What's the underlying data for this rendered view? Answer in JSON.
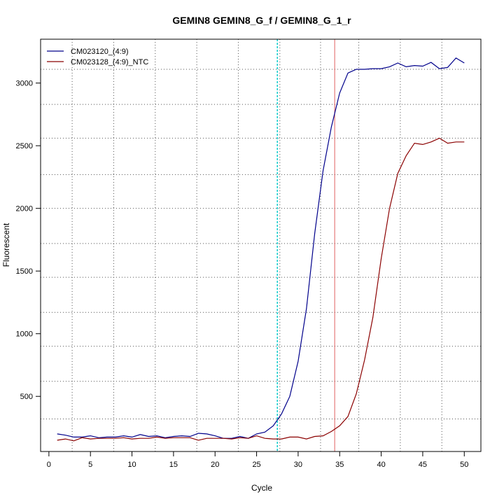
{
  "chart_data": {
    "type": "line",
    "title": "GEMIN8  GEMIN8_G_f / GEMIN8_G_1_r",
    "xlabel": "Cycle",
    "ylabel": "Fluorescent",
    "xlim": [
      -1,
      52
    ],
    "ylim": [
      60,
      3350
    ],
    "xticks": [
      0,
      5,
      10,
      15,
      20,
      25,
      30,
      35,
      40,
      45,
      50
    ],
    "yticks": [
      500,
      1000,
      1500,
      2000,
      2500,
      3000
    ],
    "grid": {
      "style": "dotted",
      "vertical_x": [
        2.8,
        7.8,
        12.8,
        17.8,
        22.8,
        27.8,
        32.7,
        37.3,
        42.3,
        47.3
      ],
      "horizontal_y": [
        320,
        620,
        900,
        1170,
        1450,
        1720,
        2000,
        2270,
        2560,
        2830,
        3110
      ]
    },
    "legend_position": "top-left",
    "threshold_line": {
      "x": 27.5,
      "color": "#00cccc"
    },
    "ct_line": {
      "x": 34.4,
      "color": "#e06060"
    },
    "series": [
      {
        "name": "CM023120_(4:9)",
        "color": "#00008b",
        "x": [
          1,
          2,
          3,
          4,
          5,
          6,
          7,
          8,
          9,
          10,
          11,
          12,
          13,
          14,
          15,
          16,
          17,
          18,
          19,
          20,
          21,
          22,
          23,
          24,
          25,
          26,
          27,
          28,
          29,
          30,
          31,
          32,
          33,
          34,
          35,
          36,
          37,
          38,
          39,
          40,
          41,
          42,
          43,
          44,
          45,
          46,
          47,
          48,
          49,
          50
        ],
        "values": [
          200,
          190,
          175,
          175,
          185,
          170,
          175,
          175,
          185,
          175,
          195,
          180,
          185,
          170,
          180,
          185,
          180,
          205,
          200,
          185,
          165,
          165,
          180,
          165,
          200,
          215,
          265,
          360,
          500,
          780,
          1200,
          1800,
          2300,
          2650,
          2920,
          3080,
          3110,
          3110,
          3115,
          3115,
          3130,
          3160,
          3130,
          3140,
          3135,
          3165,
          3115,
          3125,
          3200,
          3160
        ]
      },
      {
        "name": "CM023128_(4:9)_NTC",
        "color": "#8b0000",
        "x": [
          1,
          2,
          3,
          4,
          5,
          6,
          7,
          8,
          9,
          10,
          11,
          12,
          13,
          14,
          15,
          16,
          17,
          18,
          19,
          20,
          21,
          22,
          23,
          24,
          25,
          26,
          27,
          28,
          29,
          30,
          31,
          32,
          33,
          34,
          35,
          36,
          37,
          38,
          39,
          40,
          41,
          42,
          43,
          44,
          45,
          46,
          47,
          48,
          49,
          50
        ],
        "values": [
          150,
          160,
          145,
          170,
          160,
          165,
          165,
          165,
          170,
          160,
          165,
          165,
          175,
          165,
          170,
          170,
          170,
          150,
          165,
          165,
          165,
          160,
          170,
          165,
          185,
          165,
          160,
          160,
          175,
          175,
          160,
          180,
          185,
          220,
          265,
          340,
          520,
          790,
          1130,
          1600,
          2000,
          2280,
          2420,
          2520,
          2510,
          2530,
          2560,
          2520,
          2530,
          2530
        ]
      }
    ]
  }
}
